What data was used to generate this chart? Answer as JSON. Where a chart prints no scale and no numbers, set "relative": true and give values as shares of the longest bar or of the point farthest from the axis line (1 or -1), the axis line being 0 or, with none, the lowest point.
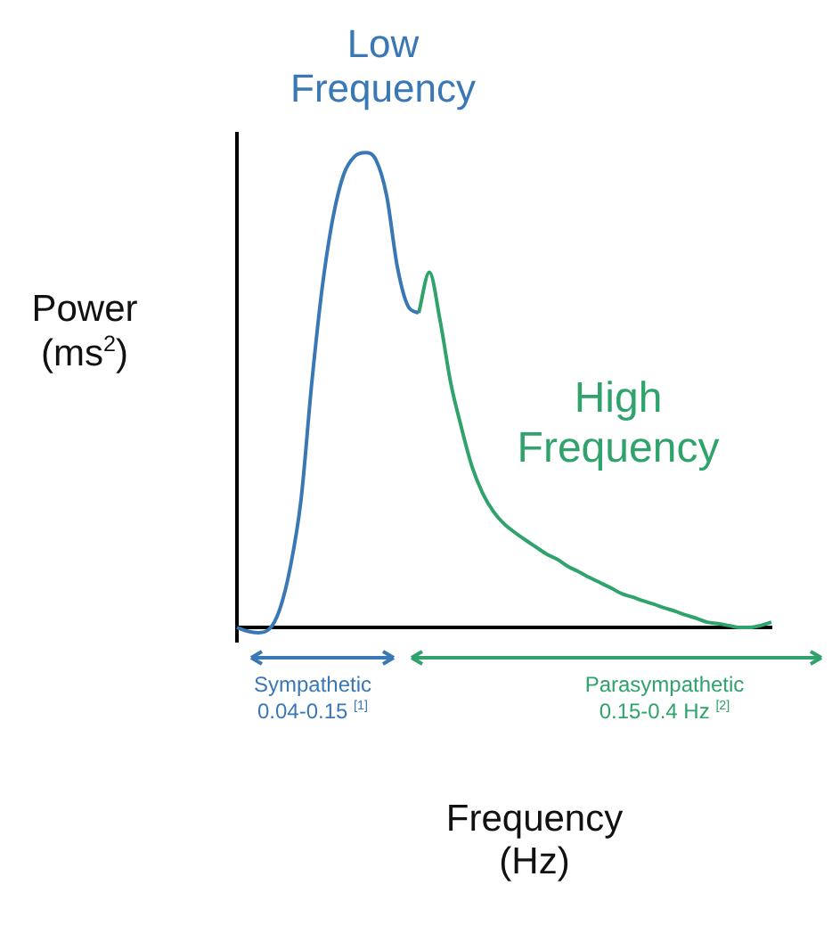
{
  "chart_data": {
    "type": "line",
    "relative": true,
    "ylabel": "Power (ms$^{2}$)",
    "xlabel": "Frequency (Hz)",
    "categories": [
      null,
      null,
      null,
      null,
      null,
      null,
      null,
      null,
      null,
      null,
      null,
      null,
      null,
      null,
      null,
      null,
      null,
      null,
      null,
      null,
      null,
      null,
      null,
      null,
      null,
      null,
      null,
      null,
      null,
      null,
      null,
      null,
      null,
      null,
      null,
      null,
      null,
      null,
      null,
      null,
      null,
      null,
      null,
      null,
      null,
      null,
      null,
      null,
      null,
      null,
      null
    ],
    "series": [
      {
        "name": "Low Frequency",
        "color": "#3a78b5",
        "values": [
          0,
          -0.008,
          -0.011,
          -0.004,
          0.038,
          0.128,
          0.27,
          0.515,
          0.72,
          0.865,
          0.955,
          0.992,
          1,
          0.985,
          0.91,
          0.76,
          0.677,
          0.662,
          null,
          null,
          null,
          null,
          null,
          null,
          null,
          null,
          null,
          null,
          null,
          null,
          null,
          null,
          null,
          null,
          null,
          null,
          null,
          null,
          null,
          null,
          null,
          null,
          null,
          null,
          null,
          null,
          null,
          null,
          null,
          null,
          null
        ]
      },
      {
        "name": "High Frequency",
        "color": "#2fa36b",
        "values": [
          null,
          null,
          null,
          null,
          null,
          null,
          null,
          null,
          null,
          null,
          null,
          null,
          null,
          null,
          null,
          null,
          null,
          0.662,
          0.748,
          0.647,
          0.515,
          0.421,
          0.338,
          0.282,
          0.244,
          0.218,
          0.2,
          0.184,
          0.169,
          0.154,
          0.143,
          0.128,
          0.117,
          0.105,
          0.094,
          0.083,
          0.071,
          0.064,
          0.056,
          0.049,
          0.041,
          0.034,
          0.026,
          0.019,
          0.011,
          0.008,
          0.004,
          0,
          0,
          0.004,
          0.011
        ]
      }
    ],
    "annotations": [
      "Sympathetic\n0.04-0.15 $^{[1]}$",
      "Parasympathetic\n0.15-0.4 Hz $^{[2]}$"
    ]
  }
}
